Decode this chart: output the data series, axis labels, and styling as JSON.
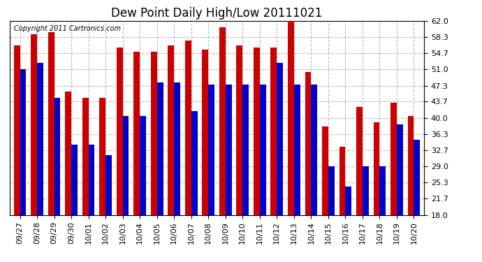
{
  "title": "Dew Point Daily High/Low 20111021",
  "copyright": "Copyright 2011 Cartronics.com",
  "categories": [
    "09/27",
    "09/28",
    "09/29",
    "09/30",
    "10/01",
    "10/02",
    "10/03",
    "10/04",
    "10/05",
    "10/06",
    "10/07",
    "10/08",
    "10/09",
    "10/10",
    "10/11",
    "10/12",
    "10/13",
    "10/14",
    "10/15",
    "10/16",
    "10/17",
    "10/18",
    "10/19",
    "10/20"
  ],
  "high_values": [
    56.5,
    59.0,
    59.5,
    46.0,
    44.5,
    44.5,
    56.0,
    55.0,
    55.0,
    56.5,
    57.5,
    55.5,
    60.5,
    56.5,
    56.0,
    56.0,
    62.0,
    50.5,
    38.0,
    33.5,
    42.5,
    39.0,
    43.5,
    40.5
  ],
  "low_values": [
    51.0,
    52.5,
    44.5,
    34.0,
    34.0,
    31.5,
    40.5,
    40.5,
    48.0,
    48.0,
    41.5,
    47.5,
    47.5,
    47.5,
    47.5,
    52.5,
    47.5,
    47.5,
    29.0,
    24.5,
    29.0,
    29.0,
    38.5,
    35.0
  ],
  "high_color": "#cc0000",
  "low_color": "#0000cc",
  "background_color": "#ffffff",
  "plot_bg_color": "#ffffff",
  "grid_color": "#bbbbbb",
  "ylim": [
    18.0,
    62.0
  ],
  "yticks": [
    18.0,
    21.7,
    25.3,
    29.0,
    32.7,
    36.3,
    40.0,
    43.7,
    47.3,
    51.0,
    54.7,
    58.3,
    62.0
  ],
  "title_fontsize": 12,
  "tick_fontsize": 8,
  "copyright_fontsize": 7
}
